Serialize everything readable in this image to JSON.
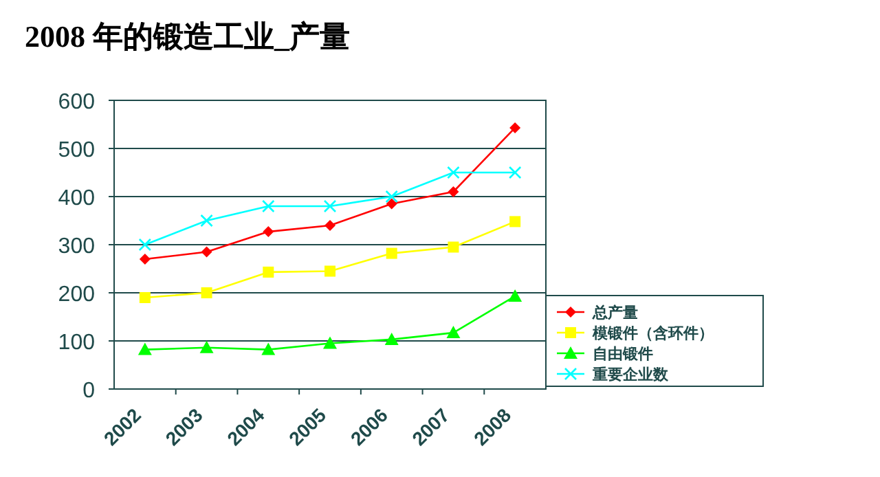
{
  "chart_data": {
    "type": "line",
    "title": "2008 年的锻造工业_产量",
    "categories": [
      "2002",
      "2003",
      "2004",
      "2005",
      "2006",
      "2007",
      "2008"
    ],
    "series": [
      {
        "name": "总产量",
        "color": "#ff0000",
        "marker": "diamond",
        "values": [
          270,
          285,
          327,
          340,
          385,
          410,
          543
        ]
      },
      {
        "name": "模锻件（含环件）",
        "color": "#ffff00",
        "marker": "square",
        "values": [
          190,
          200,
          243,
          245,
          282,
          295,
          348
        ]
      },
      {
        "name": "自由锻件",
        "color": "#00ff00",
        "marker": "triangle",
        "values": [
          82,
          86,
          82,
          95,
          103,
          117,
          193
        ]
      },
      {
        "name": "重要企业数",
        "color": "#00ffff",
        "marker": "cross",
        "values": [
          300,
          350,
          380,
          380,
          400,
          450,
          450
        ]
      }
    ],
    "ylim": [
      0,
      600
    ],
    "yticks": [
      0,
      100,
      200,
      300,
      400,
      500,
      600
    ],
    "grid": "y",
    "legend": "right"
  }
}
